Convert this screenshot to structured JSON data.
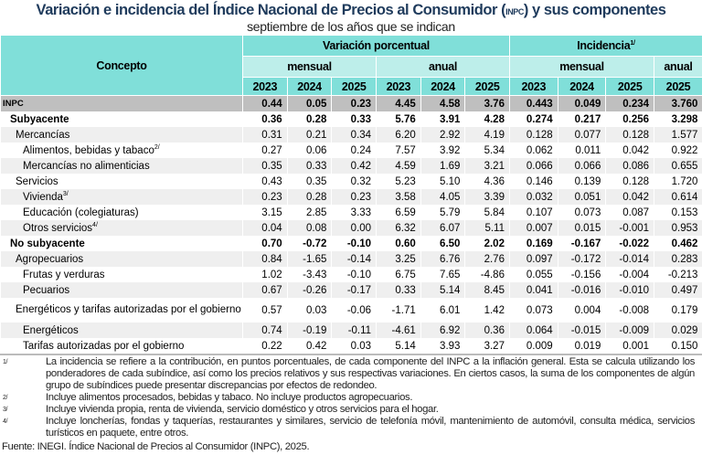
{
  "title": {
    "main_before": "Variación e incidencia del Índice Nacional de Precios al Consumidor (",
    "abbr": "INPC",
    "main_after": ") y sus componentes",
    "subtitle": "septiembre de los años que se indican"
  },
  "header": {
    "concept": "Concepto",
    "variacion": "Variación porcentual",
    "incidencia": "Incidencia",
    "incidencia_note": "1/",
    "mensual": "mensual",
    "anual": "anual",
    "years_var": [
      "2023",
      "2024",
      "2025",
      "2023",
      "2024",
      "2025"
    ],
    "years_inc": [
      "2023",
      "2024",
      "2025",
      "2025"
    ]
  },
  "colors": {
    "header_dark": "#80dfd9",
    "header_light": "#bdeeea",
    "inpc_row": "#bfbfbf",
    "shade_row": "#efefef",
    "title": "#1f3b5c"
  },
  "rows": [
    {
      "label": "INPC",
      "note": "",
      "level": 0,
      "style": "inpc",
      "values": [
        "0.44",
        "0.05",
        "0.23",
        "4.45",
        "4.58",
        "3.76",
        "0.443",
        "0.049",
        "0.234",
        "3.760"
      ]
    },
    {
      "label": "Subyacente",
      "note": "",
      "level": 0,
      "style": "bold",
      "values": [
        "0.36",
        "0.28",
        "0.33",
        "5.76",
        "3.91",
        "4.28",
        "0.274",
        "0.217",
        "0.256",
        "3.298"
      ]
    },
    {
      "label": "Mercancías",
      "note": "",
      "level": 1,
      "style": "shade",
      "values": [
        "0.31",
        "0.21",
        "0.34",
        "6.20",
        "2.92",
        "4.19",
        "0.128",
        "0.077",
        "0.128",
        "1.577"
      ]
    },
    {
      "label": "Alimentos, bebidas y tabaco",
      "note": "2/",
      "level": 2,
      "style": "",
      "values": [
        "0.27",
        "0.06",
        "0.24",
        "7.57",
        "3.92",
        "5.34",
        "0.062",
        "0.011",
        "0.042",
        "0.922"
      ]
    },
    {
      "label": "Mercancías no alimenticias",
      "note": "",
      "level": 2,
      "style": "shade",
      "values": [
        "0.35",
        "0.33",
        "0.42",
        "4.59",
        "1.69",
        "3.21",
        "0.066",
        "0.066",
        "0.086",
        "0.655"
      ]
    },
    {
      "label": "Servicios",
      "note": "",
      "level": 1,
      "style": "",
      "values": [
        "0.43",
        "0.35",
        "0.32",
        "5.23",
        "5.10",
        "4.36",
        "0.146",
        "0.139",
        "0.128",
        "1.720"
      ]
    },
    {
      "label": "Vivienda",
      "note": "3/",
      "level": 2,
      "style": "shade",
      "values": [
        "0.23",
        "0.28",
        "0.23",
        "3.58",
        "4.05",
        "3.39",
        "0.032",
        "0.051",
        "0.042",
        "0.614"
      ]
    },
    {
      "label": "Educación (colegiaturas)",
      "note": "",
      "level": 2,
      "style": "",
      "values": [
        "3.15",
        "2.85",
        "3.33",
        "6.59",
        "5.79",
        "5.84",
        "0.107",
        "0.073",
        "0.087",
        "0.153"
      ]
    },
    {
      "label": "Otros servicios",
      "note": "4/",
      "level": 2,
      "style": "shade",
      "values": [
        "0.04",
        "0.08",
        "0.00",
        "6.32",
        "6.07",
        "5.11",
        "0.007",
        "0.015",
        "-0.001",
        "0.953"
      ]
    },
    {
      "label": "No subyacente",
      "note": "",
      "level": 0,
      "style": "bold",
      "values": [
        "0.70",
        "-0.72",
        "-0.10",
        "0.60",
        "6.50",
        "2.02",
        "0.169",
        "-0.167",
        "-0.022",
        "0.462"
      ]
    },
    {
      "label": "Agropecuarios",
      "note": "",
      "level": 1,
      "style": "shade",
      "values": [
        "0.84",
        "-1.65",
        "-0.14",
        "3.25",
        "6.76",
        "2.76",
        "0.097",
        "-0.172",
        "-0.014",
        "0.283"
      ]
    },
    {
      "label": "Frutas y verduras",
      "note": "",
      "level": 2,
      "style": "",
      "values": [
        "1.02",
        "-3.43",
        "-0.10",
        "6.75",
        "7.65",
        "-4.86",
        "0.055",
        "-0.156",
        "-0.004",
        "-0.213"
      ]
    },
    {
      "label": "Pecuarios",
      "note": "",
      "level": 2,
      "style": "shade",
      "values": [
        "0.67",
        "-0.26",
        "-0.17",
        "0.33",
        "5.14",
        "8.45",
        "0.041",
        "-0.016",
        "-0.010",
        "0.497"
      ]
    },
    {
      "label": "Energéticos y tarifas autorizadas por el gobierno",
      "note": "",
      "level": 1,
      "style": "double",
      "values": [
        "0.57",
        "0.03",
        "-0.06",
        "-1.71",
        "6.01",
        "1.42",
        "0.073",
        "0.004",
        "-0.008",
        "0.179"
      ]
    },
    {
      "label": "Energéticos",
      "note": "",
      "level": 2,
      "style": "shade",
      "values": [
        "0.74",
        "-0.19",
        "-0.11",
        "-4.61",
        "6.92",
        "0.36",
        "0.064",
        "-0.015",
        "-0.009",
        "0.029"
      ]
    },
    {
      "label": "Tarifas autorizadas por el gobierno",
      "note": "",
      "level": 2,
      "style": "",
      "values": [
        "0.22",
        "0.42",
        "0.03",
        "5.14",
        "3.93",
        "3.27",
        "0.009",
        "0.019",
        "0.001",
        "0.150"
      ]
    }
  ],
  "notes": [
    {
      "mark": "1/",
      "text": "La incidencia se refiere a la contribución, en puntos porcentuales, de cada componente del INPC a la inflación general. Esta se calcula utilizando los ponderadores de cada subíndice, así como los precios relativos y sus respectivas variaciones. En ciertos casos, la suma de los componentes de algún grupo de subíndices puede presentar discrepancias por efectos de redondeo."
    },
    {
      "mark": "2/",
      "text": "Incluye alimentos procesados, bebidas y tabaco. No incluye productos agropecuarios."
    },
    {
      "mark": "3/",
      "text": "Incluye vivienda propia, renta de vivienda, servicio doméstico y otros servicios para el hogar."
    },
    {
      "mark": "4/",
      "text": "Incluye loncherías, fondas y taquerías, restaurantes y similares, servicio de telefonía móvil, mantenimiento de automóvil, consulta médica, servicios turísticos en paquete, entre otros."
    }
  ],
  "source": "Fuente: INEGI. Índice Nacional de Precios al Consumidor (INPC), 2025."
}
